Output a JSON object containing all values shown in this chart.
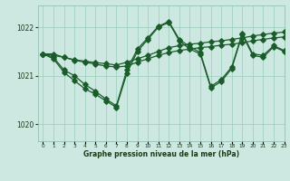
{
  "title": "Graphe pression niveau de la mer (hPa)",
  "bg_color": "#cce8e0",
  "grid_color": "#99ccbb",
  "line_color": "#1a5c2a",
  "xlim": [
    -0.5,
    23
  ],
  "ylim": [
    1019.65,
    1022.45
  ],
  "yticks": [
    1020,
    1021,
    1022
  ],
  "xticks": [
    0,
    1,
    2,
    3,
    4,
    5,
    6,
    7,
    8,
    9,
    10,
    11,
    12,
    13,
    14,
    15,
    16,
    17,
    18,
    19,
    20,
    21,
    22,
    23
  ],
  "line1_x": [
    0,
    1,
    2,
    3,
    4,
    5,
    6,
    7,
    8,
    9,
    10,
    11,
    12,
    13,
    14,
    15,
    16,
    17,
    18,
    19,
    20,
    21,
    22,
    23
  ],
  "line1_y": [
    1021.45,
    1021.45,
    1021.38,
    1021.32,
    1021.28,
    1021.24,
    1021.2,
    1021.18,
    1021.2,
    1021.28,
    1021.35,
    1021.42,
    1021.48,
    1021.52,
    1021.55,
    1021.58,
    1021.6,
    1021.63,
    1021.65,
    1021.68,
    1021.72,
    1021.75,
    1021.78,
    1021.8
  ],
  "line2_x": [
    0,
    1,
    2,
    3,
    4,
    5,
    6,
    7,
    8,
    9,
    10,
    11,
    12,
    13,
    14,
    15,
    16,
    17,
    18,
    19,
    20,
    21,
    22,
    23
  ],
  "line2_y": [
    1021.45,
    1021.42,
    1021.38,
    1021.33,
    1021.3,
    1021.27,
    1021.25,
    1021.22,
    1021.28,
    1021.35,
    1021.42,
    1021.5,
    1021.58,
    1021.62,
    1021.65,
    1021.67,
    1021.7,
    1021.72,
    1021.75,
    1021.78,
    1021.82,
    1021.85,
    1021.88,
    1021.9
  ],
  "line3_x": [
    0,
    1,
    2,
    3,
    4,
    5,
    6,
    7,
    8,
    9,
    10,
    11,
    12,
    13,
    14,
    15,
    16,
    17,
    18,
    19,
    20,
    21,
    22,
    23
  ],
  "line3_y": [
    1021.45,
    1021.35,
    1021.07,
    1020.9,
    1020.73,
    1020.62,
    1020.48,
    1020.35,
    1021.05,
    1021.5,
    1021.75,
    1022.0,
    1022.1,
    1021.72,
    1021.55,
    1021.45,
    1020.75,
    1020.88,
    1021.15,
    1021.85,
    1021.42,
    1021.38,
    1021.6,
    1021.5
  ],
  "line4_x": [
    0,
    1,
    2,
    3,
    4,
    5,
    6,
    7,
    8,
    9,
    10,
    11,
    12,
    13,
    14,
    15,
    16,
    17,
    18,
    19,
    20,
    21,
    22,
    23
  ],
  "line4_y": [
    1021.45,
    1021.38,
    1021.12,
    1021.0,
    1020.82,
    1020.68,
    1020.52,
    1020.38,
    1021.12,
    1021.55,
    1021.78,
    1022.02,
    1022.12,
    1021.75,
    1021.6,
    1021.48,
    1020.78,
    1020.92,
    1021.18,
    1021.88,
    1021.45,
    1021.42,
    1021.62,
    1021.52
  ]
}
